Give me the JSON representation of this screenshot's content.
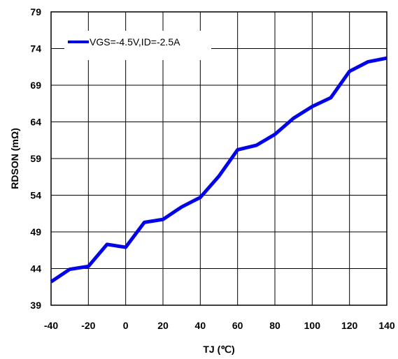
{
  "chart_data": {
    "type": "line",
    "title": "",
    "xlabel": "TJ (℃)",
    "ylabel": "RDSON (mΩ)",
    "xlim": [
      -40,
      140
    ],
    "ylim": [
      39,
      79
    ],
    "x_ticks": [
      -40,
      -20,
      0,
      20,
      40,
      60,
      80,
      100,
      120,
      140
    ],
    "x_tick_labels": [
      "-40",
      "-20",
      "0",
      "20",
      "40",
      "60",
      "80",
      "100",
      "120",
      "140"
    ],
    "y_ticks": [
      39,
      44,
      49,
      54,
      59,
      64,
      69,
      74,
      79
    ],
    "y_tick_labels": [
      "39",
      "44",
      "49",
      "54",
      "59",
      "64",
      "69",
      "74",
      "79"
    ],
    "grid": true,
    "legend_position": "top-left",
    "series": [
      {
        "name": "VGS=-4.5V,ID=-2.5A",
        "color": "#0000ff",
        "x": [
          -40,
          -30,
          -20,
          -10,
          0,
          10,
          20,
          30,
          40,
          50,
          60,
          70,
          80,
          90,
          100,
          110,
          120,
          130,
          140
        ],
        "y": [
          42.2,
          43.9,
          44.3,
          47.3,
          46.9,
          50.3,
          50.7,
          52.4,
          53.7,
          56.6,
          60.2,
          60.8,
          62.3,
          64.5,
          66.1,
          67.3,
          70.9,
          72.2,
          72.7
        ]
      }
    ]
  }
}
